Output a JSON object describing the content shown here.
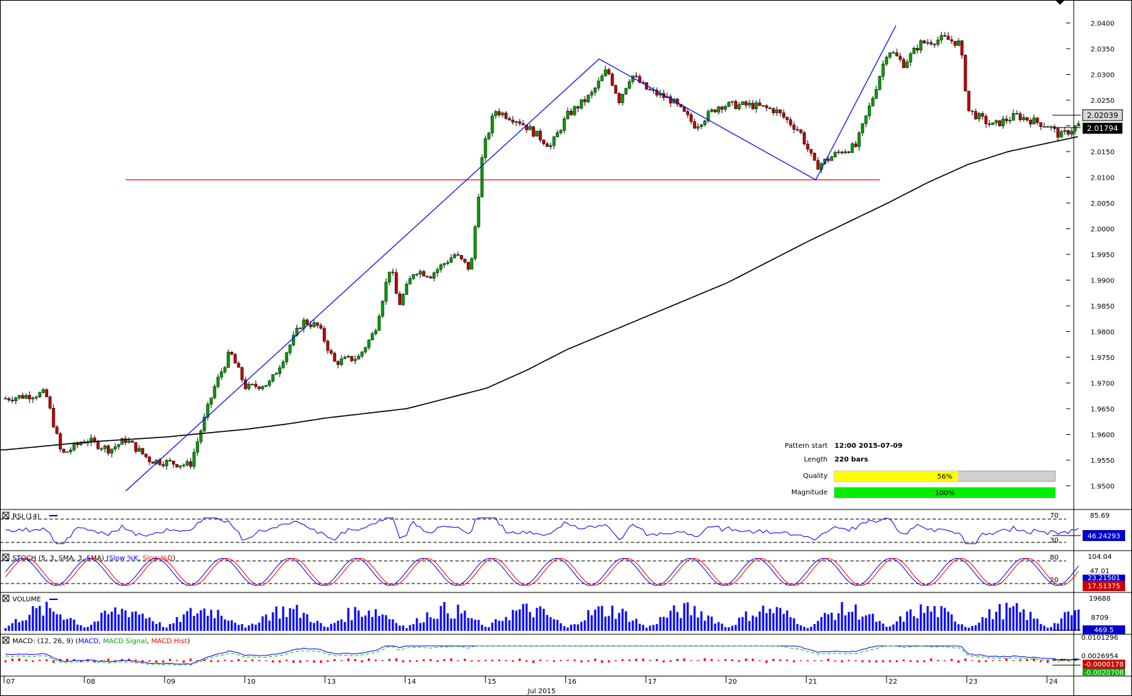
{
  "chart_data": {
    "type": "candlestick",
    "title": "",
    "xlabel": "",
    "ylabel": "",
    "ylim": [
      1.946,
      2.042
    ],
    "y_ticks": [
      "2.0400",
      "2.0350",
      "2.0300",
      "2.0250",
      "2.0200",
      "2.0150",
      "2.0100",
      "2.0050",
      "2.0000",
      "1.9950",
      "1.9900",
      "1.9850",
      "1.9800",
      "1.9750",
      "1.9700",
      "1.9650",
      "1.9600",
      "1.9550",
      "1.9500"
    ],
    "x_ticks": [
      "07",
      "08",
      "09",
      "10",
      "13",
      "14",
      "15",
      "16",
      "17",
      "20",
      "21",
      "22",
      "23",
      "24"
    ],
    "x_period_label": "Jul 2015",
    "price_labels": {
      "last": "2.02039",
      "ma": "2.01794"
    },
    "moving_average": [
      {
        "day": 0.0,
        "value": 1.957
      },
      {
        "day": 1.0,
        "value": 1.9585
      },
      {
        "day": 2.0,
        "value": 1.9595
      },
      {
        "day": 3.0,
        "value": 1.961
      },
      {
        "day": 3.5,
        "value": 1.962
      },
      {
        "day": 4.0,
        "value": 1.9632
      },
      {
        "day": 5.0,
        "value": 1.965
      },
      {
        "day": 6.0,
        "value": 1.969
      },
      {
        "day": 6.5,
        "value": 1.9725
      },
      {
        "day": 7.0,
        "value": 1.9765
      },
      {
        "day": 8.0,
        "value": 1.983
      },
      {
        "day": 9.0,
        "value": 1.9895
      },
      {
        "day": 10.0,
        "value": 1.9975
      },
      {
        "day": 11.0,
        "value": 2.005
      },
      {
        "day": 11.5,
        "value": 2.009
      },
      {
        "day": 12.0,
        "value": 2.0125
      },
      {
        "day": 12.5,
        "value": 2.015
      },
      {
        "day": 13.1,
        "value": 2.017
      },
      {
        "day": 13.4,
        "value": 2.018
      }
    ],
    "pattern_line": [
      {
        "day": 1.5,
        "value": 1.949
      },
      {
        "day": 7.4,
        "value": 2.033
      },
      {
        "day": 10.1,
        "value": 2.0095
      },
      {
        "day": 11.1,
        "value": 2.0395
      }
    ],
    "support_line": {
      "value": 2.0095,
      "from_day": 1.5,
      "to_day": 10.9
    },
    "series": [
      {
        "name": "Price",
        "anchors": [
          {
            "day": 0.0,
            "value": 1.967
          },
          {
            "day": 0.5,
            "value": 1.968
          },
          {
            "day": 0.7,
            "value": 1.956
          },
          {
            "day": 1.0,
            "value": 1.959
          },
          {
            "day": 1.3,
            "value": 1.957
          },
          {
            "day": 1.5,
            "value": 1.959
          },
          {
            "day": 1.8,
            "value": 1.955
          },
          {
            "day": 2.3,
            "value": 1.954
          },
          {
            "day": 2.6,
            "value": 1.969
          },
          {
            "day": 2.8,
            "value": 1.976
          },
          {
            "day": 3.0,
            "value": 1.969
          },
          {
            "day": 3.3,
            "value": 1.97
          },
          {
            "day": 3.5,
            "value": 1.976
          },
          {
            "day": 3.7,
            "value": 1.982
          },
          {
            "day": 3.9,
            "value": 1.981
          },
          {
            "day": 4.1,
            "value": 1.974
          },
          {
            "day": 4.4,
            "value": 1.975
          },
          {
            "day": 4.6,
            "value": 1.98
          },
          {
            "day": 4.8,
            "value": 1.993
          },
          {
            "day": 4.9,
            "value": 1.985
          },
          {
            "day": 5.1,
            "value": 1.992
          },
          {
            "day": 5.3,
            "value": 1.991
          },
          {
            "day": 5.6,
            "value": 1.995
          },
          {
            "day": 5.8,
            "value": 1.992
          },
          {
            "day": 5.95,
            "value": 2.015
          },
          {
            "day": 6.1,
            "value": 2.023
          },
          {
            "day": 6.4,
            "value": 2.021
          },
          {
            "day": 6.8,
            "value": 2.016
          },
          {
            "day": 7.0,
            "value": 2.022
          },
          {
            "day": 7.3,
            "value": 2.026
          },
          {
            "day": 7.5,
            "value": 2.031
          },
          {
            "day": 7.65,
            "value": 2.025
          },
          {
            "day": 7.8,
            "value": 2.03
          },
          {
            "day": 8.0,
            "value": 2.027
          },
          {
            "day": 8.3,
            "value": 2.025
          },
          {
            "day": 8.6,
            "value": 2.02
          },
          {
            "day": 8.9,
            "value": 2.024
          },
          {
            "day": 9.3,
            "value": 2.024
          },
          {
            "day": 9.6,
            "value": 2.023
          },
          {
            "day": 9.9,
            "value": 2.019
          },
          {
            "day": 10.1,
            "value": 2.012
          },
          {
            "day": 10.4,
            "value": 2.015
          },
          {
            "day": 10.6,
            "value": 2.016
          },
          {
            "day": 10.8,
            "value": 2.025
          },
          {
            "day": 11.0,
            "value": 2.035
          },
          {
            "day": 11.2,
            "value": 2.032
          },
          {
            "day": 11.4,
            "value": 2.036
          },
          {
            "day": 11.7,
            "value": 2.037
          },
          {
            "day": 11.9,
            "value": 2.036
          },
          {
            "day": 12.0,
            "value": 2.023
          },
          {
            "day": 12.3,
            "value": 2.02
          },
          {
            "day": 12.6,
            "value": 2.022
          },
          {
            "day": 12.8,
            "value": 2.021
          },
          {
            "day": 13.0,
            "value": 2.02
          },
          {
            "day": 13.15,
            "value": 2.018
          },
          {
            "day": 13.4,
            "value": 2.0204
          }
        ]
      }
    ]
  },
  "pattern_info": {
    "start_label": "Pattern start",
    "start_value": "12:00 2015-07-09",
    "length_label": "Length",
    "length_value": "220 bars",
    "quality_label": "Quality",
    "quality_value": "56%",
    "quality_fraction": 0.56,
    "magnitude_label": "Magnitude",
    "magnitude_value": "100%",
    "magnitude_fraction": 1.0
  },
  "indicators": {
    "rsi": {
      "title": "RSI (14)",
      "levels": [
        "70",
        "30"
      ],
      "scale_top": "85.69",
      "current": "46.24293"
    },
    "stoch": {
      "title": "STOCH (5, 3, SMA, 3, SMA)",
      "parts": [
        "STOCH (5, 3, SMA, 3, SMA) (",
        "Slow %K",
        ", ",
        "Slow %D",
        ")"
      ],
      "levels": [
        "80",
        "20"
      ],
      "scale_top": "104.04",
      "current_d": "17.51375",
      "current_k_partial": "23.21501",
      "partial_level": "47.01"
    },
    "volume": {
      "title": "VOLUME",
      "scale_top": "19688",
      "scale_mid": "8709",
      "current": "469.5"
    },
    "macd": {
      "title": "MACD (12, 26, 9)",
      "parts": [
        "MACD: (12, 26, 9) (",
        "MACD",
        ", ",
        "MACD Signal",
        ", ",
        "MACD Hist",
        ")"
      ],
      "scale_top": "0.0101296",
      "scale_mid": "0.0026954",
      "current": "-0.0000178",
      "bottom": "-0.0020708"
    }
  },
  "colors": {
    "bull": "#00a000",
    "bear": "#c00000",
    "pattern": "#0000ff",
    "support": "#ff0000",
    "ma": "#000000",
    "quality": "#ffff00",
    "magnitude": "#00ee00",
    "rsi": "#0000ff",
    "stoch_k": "#0000ff",
    "stoch_d": "#ff0000",
    "volume": "#0000ff",
    "macd": "#0000ff",
    "macd_signal": "#00cc00",
    "macd_hist": "#ff0000"
  }
}
